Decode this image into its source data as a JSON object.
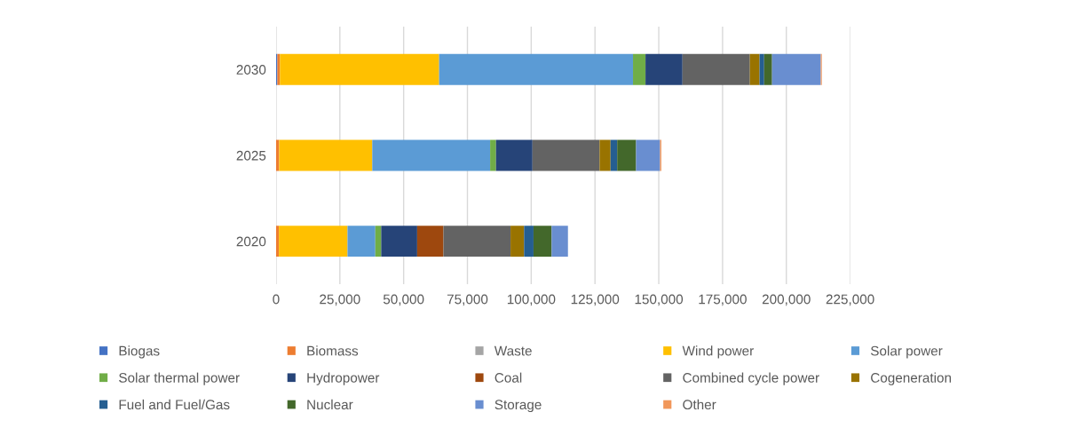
{
  "chart_data": {
    "type": "bar",
    "orientation": "horizontal",
    "stacked": true,
    "categories": [
      "2030",
      "2025",
      "2020"
    ],
    "series": [
      {
        "name": "Biogas",
        "color": "#4472c4",
        "values": [
          500,
          0,
          0
        ]
      },
      {
        "name": "Biomass",
        "color": "#ed7d31",
        "values": [
          1000,
          1200,
          1100
        ]
      },
      {
        "name": "Waste",
        "color": "#a5a5a5",
        "values": [
          null,
          null,
          0
        ]
      },
      {
        "name": "Wind power",
        "color": "#ffc000",
        "values": [
          62400,
          36500,
          26900
        ]
      },
      {
        "name": "Solar power",
        "color": "#5b9bd5",
        "values": [
          76000,
          46200,
          10900
        ]
      },
      {
        "name": "Solar thermal power",
        "color": "#70ad47",
        "values": [
          4900,
          2300,
          2300
        ]
      },
      {
        "name": "Hydropower",
        "color": "#264478",
        "values": [
          14500,
          14300,
          14100
        ]
      },
      {
        "name": "Coal",
        "color": "#9e480e",
        "values": [
          0,
          0,
          10300
        ]
      },
      {
        "name": "Combined cycle power",
        "color": "#636363",
        "values": [
          26400,
          26300,
          26300
        ]
      },
      {
        "name": "Cogeneration",
        "color": "#997300",
        "values": [
          3800,
          4300,
          5300
        ]
      },
      {
        "name": "Fuel and Fuel/Gas",
        "color": "#255e91",
        "values": [
          1800,
          2600,
          3700
        ]
      },
      {
        "name": "Nuclear",
        "color": "#43682b",
        "values": [
          3100,
          7400,
          7100
        ]
      },
      {
        "name": "Storage",
        "color": "#698ed0",
        "values": [
          19100,
          9400,
          6400
        ]
      },
      {
        "name": "Other",
        "color": "#f1975a",
        "values": [
          400,
          500,
          0
        ]
      }
    ],
    "xlim": [
      0,
      225000
    ],
    "xticks": [
      {
        "value": 0,
        "label": "0"
      },
      {
        "value": 25000,
        "label": "25,000"
      },
      {
        "value": 50000,
        "label": "50,000"
      },
      {
        "value": 75000,
        "label": "75,000"
      },
      {
        "value": 100000,
        "label": "100,000"
      },
      {
        "value": 125000,
        "label": "125,000"
      },
      {
        "value": 150000,
        "label": "150,000"
      },
      {
        "value": 175000,
        "label": "175,000"
      },
      {
        "value": 200000,
        "label": "200,000"
      },
      {
        "value": 225000,
        "label": "225,000"
      }
    ],
    "grid": "x",
    "legend": "bottom"
  }
}
